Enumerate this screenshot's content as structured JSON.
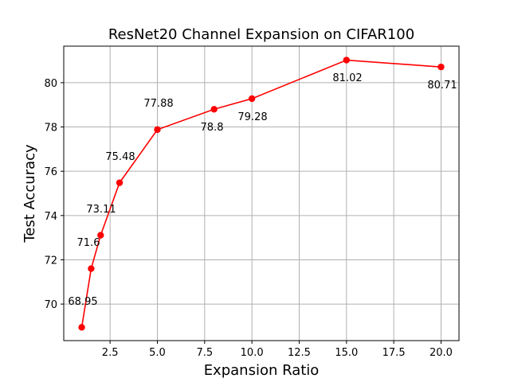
{
  "chart_data": {
    "type": "line",
    "title": "ResNet20 Channel Expansion on CIFAR100",
    "xlabel": "Expansion Ratio",
    "ylabel": "Test Accuracy",
    "xlim": [
      0.05,
      20.95
    ],
    "ylim": [
      68.35,
      81.65
    ],
    "xticks": [
      2.5,
      5.0,
      7.5,
      10.0,
      12.5,
      15.0,
      17.5,
      20.0
    ],
    "xtick_labels": [
      "2.5",
      "5.0",
      "7.5",
      "10.0",
      "12.5",
      "15.0",
      "17.5",
      "20.0"
    ],
    "yticks": [
      70,
      72,
      74,
      76,
      78,
      80
    ],
    "ytick_labels": [
      "70",
      "72",
      "74",
      "76",
      "78",
      "80"
    ],
    "grid": true,
    "series": [
      {
        "color": "#ff0000",
        "marker": "circle",
        "x": [
          1,
          1.5,
          2,
          3,
          5,
          8,
          10,
          15,
          20
        ],
        "y": [
          68.95,
          71.6,
          73.11,
          75.48,
          77.88,
          78.8,
          79.28,
          81.02,
          80.71
        ],
        "labels": [
          "68.95",
          "71.6",
          "73.11",
          "75.48",
          "77.88",
          "78.8",
          "79.28",
          "81.02",
          "80.71"
        ]
      }
    ]
  }
}
